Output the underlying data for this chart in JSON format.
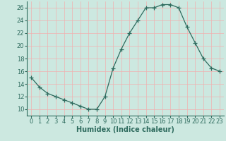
{
  "x": [
    0,
    1,
    2,
    3,
    4,
    5,
    6,
    7,
    8,
    9,
    10,
    11,
    12,
    13,
    14,
    15,
    16,
    17,
    18,
    19,
    20,
    21,
    22,
    23
  ],
  "y": [
    15,
    13.5,
    12.5,
    12,
    11.5,
    11,
    10.5,
    10,
    10,
    12,
    16.5,
    19.5,
    22,
    24,
    26,
    26,
    26.5,
    26.5,
    26,
    23,
    20.5,
    18,
    16.5,
    16
  ],
  "line_color": "#2e6b5e",
  "marker": "+",
  "marker_size": 4,
  "bg_color": "#cce8e0",
  "grid_color": "#f0b0b0",
  "xlabel": "Humidex (Indice chaleur)",
  "xlim": [
    -0.5,
    23.5
  ],
  "ylim": [
    9,
    27
  ],
  "yticks": [
    10,
    12,
    14,
    16,
    18,
    20,
    22,
    24,
    26
  ],
  "xticks": [
    0,
    1,
    2,
    3,
    4,
    5,
    6,
    7,
    8,
    9,
    10,
    11,
    12,
    13,
    14,
    15,
    16,
    17,
    18,
    19,
    20,
    21,
    22,
    23
  ],
  "label_fontsize": 7,
  "tick_fontsize": 6
}
